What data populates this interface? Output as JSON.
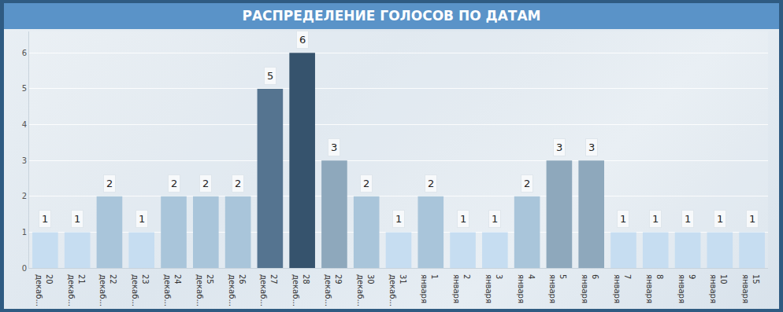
{
  "chart_data": {
    "type": "bar",
    "title": "РАСПРЕДЕЛЕНИЕ ГОЛОСОВ ПО ДАТАМ",
    "categories": [
      "20\nдекаб...",
      "21\nдекаб...",
      "22\nдекаб...",
      "23\nдекаб...",
      "24\nдекаб...",
      "25\nдекаб...",
      "26\nдекаб...",
      "27\nдекаб...",
      "28\nдекаб...",
      "29\nдекаб...",
      "30\nдекаб...",
      "31\nдекаб...",
      "1\nянваря",
      "2\nянваря",
      "3\nянваря",
      "4\nянваря",
      "5\nянваря",
      "6\nянваря",
      "7\nянваря",
      "8\nянваря",
      "9\nянваря",
      "10\nянваря",
      "15\nянваря"
    ],
    "values": [
      1,
      1,
      2,
      1,
      2,
      2,
      2,
      5,
      6,
      3,
      2,
      1,
      2,
      1,
      1,
      2,
      3,
      3,
      1,
      1,
      1,
      1,
      1
    ],
    "colors": [
      "#c6ddf1",
      "#c6ddf1",
      "#a9c5da",
      "#c6ddf1",
      "#a9c5da",
      "#a9c5da",
      "#a9c5da",
      "#557490",
      "#36536d",
      "#8ea8bc",
      "#a9c5da",
      "#c6ddf1",
      "#a9c5da",
      "#c6ddf1",
      "#c6ddf1",
      "#a9c5da",
      "#8ea8bc",
      "#8ea8bc",
      "#c6ddf1",
      "#c6ddf1",
      "#c6ddf1",
      "#c6ddf1",
      "#c6ddf1"
    ],
    "ylim": [
      0,
      6.6
    ],
    "yticks": [
      0,
      1,
      2,
      3,
      4,
      5,
      6
    ],
    "grid": true,
    "data_labels": true
  }
}
